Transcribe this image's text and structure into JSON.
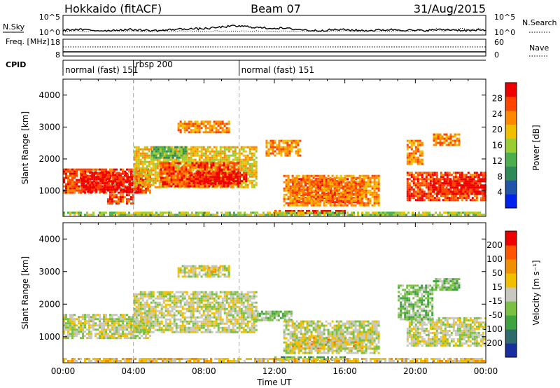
{
  "header": {
    "station": "Hokkaido (fitACF)",
    "beam": "Beam 07",
    "date": "31/Aug/2015"
  },
  "small_panels": {
    "nsky": {
      "label": "N.Sky",
      "ticks": [
        "10^5",
        "10^0"
      ]
    },
    "nsearch": {
      "label": "N.Search",
      "ticks": [
        "10^5",
        "10^0"
      ]
    },
    "freq": {
      "label": "Freq. [MHz]",
      "ticks": [
        "18",
        "8"
      ]
    },
    "nave": {
      "label": "Nave",
      "ticks": [
        "60",
        "0"
      ]
    },
    "cpid": {
      "label": "CPID",
      "entries": [
        {
          "start_ut": 0,
          "end_ut": 4.0,
          "text": "normal (fast) 151"
        },
        {
          "start_ut": 4.0,
          "end_ut": 10.0,
          "text": "rbsp 200"
        },
        {
          "start_ut": 10.0,
          "end_ut": 24.0,
          "text": "normal (fast) 151"
        }
      ]
    }
  },
  "xaxis": {
    "label": "Time UT",
    "ticks": [
      "00:00",
      "04:00",
      "08:00",
      "12:00",
      "16:00",
      "20:00",
      "00:00"
    ],
    "range_hours": [
      0,
      24
    ]
  },
  "panels": {
    "power": {
      "ylabel": "Slant Range [km]",
      "yticks": [
        "4000",
        "3000",
        "2000",
        "1000"
      ],
      "cbar_label": "Power [dB]",
      "cbar_ticks": [
        "28",
        "24",
        "20",
        "16",
        "12",
        "8",
        "4"
      ]
    },
    "velocity": {
      "ylabel": "Slant Range [km]",
      "yticks": [
        "4000",
        "3000",
        "2000",
        "1000"
      ],
      "cbar_label": "Velocity [m s⁻¹]",
      "cbar_ticks": [
        "200",
        "100",
        "50",
        "15",
        "-15",
        "-50",
        "-100",
        "-200"
      ]
    }
  },
  "chart_data": {
    "type": "heatmap",
    "x_unit": "hours UT",
    "y_unit": "km",
    "xlim": [
      0,
      24
    ],
    "ylim": [
      200,
      4500
    ],
    "power_colors": [
      "#0022ee",
      "#2255aa",
      "#2e8b57",
      "#4cae4c",
      "#9acd32",
      "#f0c000",
      "#ff8800",
      "#ff4400",
      "#ee0000"
    ],
    "velocity_colors": [
      "#1a2f9f",
      "#2f6b6b",
      "#3fa33f",
      "#7ac143",
      "#c8c8c0",
      "#f0c000",
      "#f09000",
      "#ff5500",
      "#ee0000"
    ],
    "power_regions": [
      {
        "t0": 0.0,
        "t1": 5.0,
        "r0": 900,
        "r1": 1700,
        "level": 7
      },
      {
        "t0": 1.0,
        "t1": 4.5,
        "r0": 950,
        "r1": 1600,
        "level": 8
      },
      {
        "t0": 4.0,
        "t1": 11.0,
        "r0": 1100,
        "r1": 2400,
        "level": 5
      },
      {
        "t0": 5.5,
        "t1": 10.0,
        "r0": 1100,
        "r1": 1900,
        "level": 7
      },
      {
        "t0": 7.0,
        "t1": 10.5,
        "r0": 1200,
        "r1": 1600,
        "level": 8
      },
      {
        "t0": 6.5,
        "t1": 9.5,
        "r0": 2800,
        "r1": 3200,
        "level": 6
      },
      {
        "t0": 5.0,
        "t1": 7.0,
        "r0": 2000,
        "r1": 2400,
        "level": 3
      },
      {
        "t0": 11.5,
        "t1": 13.5,
        "r0": 2100,
        "r1": 2600,
        "level": 6
      },
      {
        "t0": 13.0,
        "t1": 17.0,
        "r0": 600,
        "r1": 1400,
        "level": 8
      },
      {
        "t0": 12.5,
        "t1": 18.0,
        "r0": 500,
        "r1": 1500,
        "level": 6
      },
      {
        "t0": 12.0,
        "t1": 16.0,
        "r0": 250,
        "r1": 400,
        "level": 8
      },
      {
        "t0": 19.5,
        "t1": 24.0,
        "r0": 700,
        "r1": 1600,
        "level": 7
      },
      {
        "t0": 21.0,
        "t1": 24.0,
        "r0": 900,
        "r1": 1400,
        "level": 8
      },
      {
        "t0": 19.5,
        "t1": 20.5,
        "r0": 1800,
        "r1": 2600,
        "level": 6
      },
      {
        "t0": 21.0,
        "t1": 22.5,
        "r0": 2400,
        "r1": 2800,
        "level": 6
      },
      {
        "t0": 2.5,
        "t1": 4.0,
        "r0": 600,
        "r1": 900,
        "level": 7
      },
      {
        "t0": 0.0,
        "t1": 24.0,
        "r0": 200,
        "r1": 350,
        "level": 4
      }
    ],
    "velocity_regions": [
      {
        "t0": 0.0,
        "t1": 5.0,
        "r0": 900,
        "r1": 1700,
        "level": 4
      },
      {
        "t0": 4.0,
        "t1": 11.0,
        "r0": 1100,
        "r1": 2400,
        "level": 4
      },
      {
        "t0": 6.5,
        "t1": 9.5,
        "r0": 2800,
        "r1": 3200,
        "level": 4
      },
      {
        "t0": 8.0,
        "t1": 9.0,
        "r0": 2950,
        "r1": 3150,
        "level": 5
      },
      {
        "t0": 11.0,
        "t1": 13.0,
        "r0": 1500,
        "r1": 1800,
        "level": 3
      },
      {
        "t0": 13.0,
        "t1": 17.0,
        "r0": 600,
        "r1": 1000,
        "level": 6
      },
      {
        "t0": 14.5,
        "t1": 16.5,
        "r0": 700,
        "r1": 850,
        "level": 3
      },
      {
        "t0": 12.5,
        "t1": 18.0,
        "r0": 500,
        "r1": 1500,
        "level": 4
      },
      {
        "t0": 12.0,
        "t1": 16.0,
        "r0": 250,
        "r1": 400,
        "level": 2
      },
      {
        "t0": 19.5,
        "t1": 24.0,
        "r0": 700,
        "r1": 1600,
        "level": 4
      },
      {
        "t0": 19.0,
        "t1": 21.0,
        "r0": 1500,
        "r1": 2600,
        "level": 3
      },
      {
        "t0": 21.0,
        "t1": 22.5,
        "r0": 2400,
        "r1": 2800,
        "level": 3
      },
      {
        "t0": 0.0,
        "t1": 24.0,
        "r0": 200,
        "r1": 350,
        "level": 5
      }
    ]
  }
}
